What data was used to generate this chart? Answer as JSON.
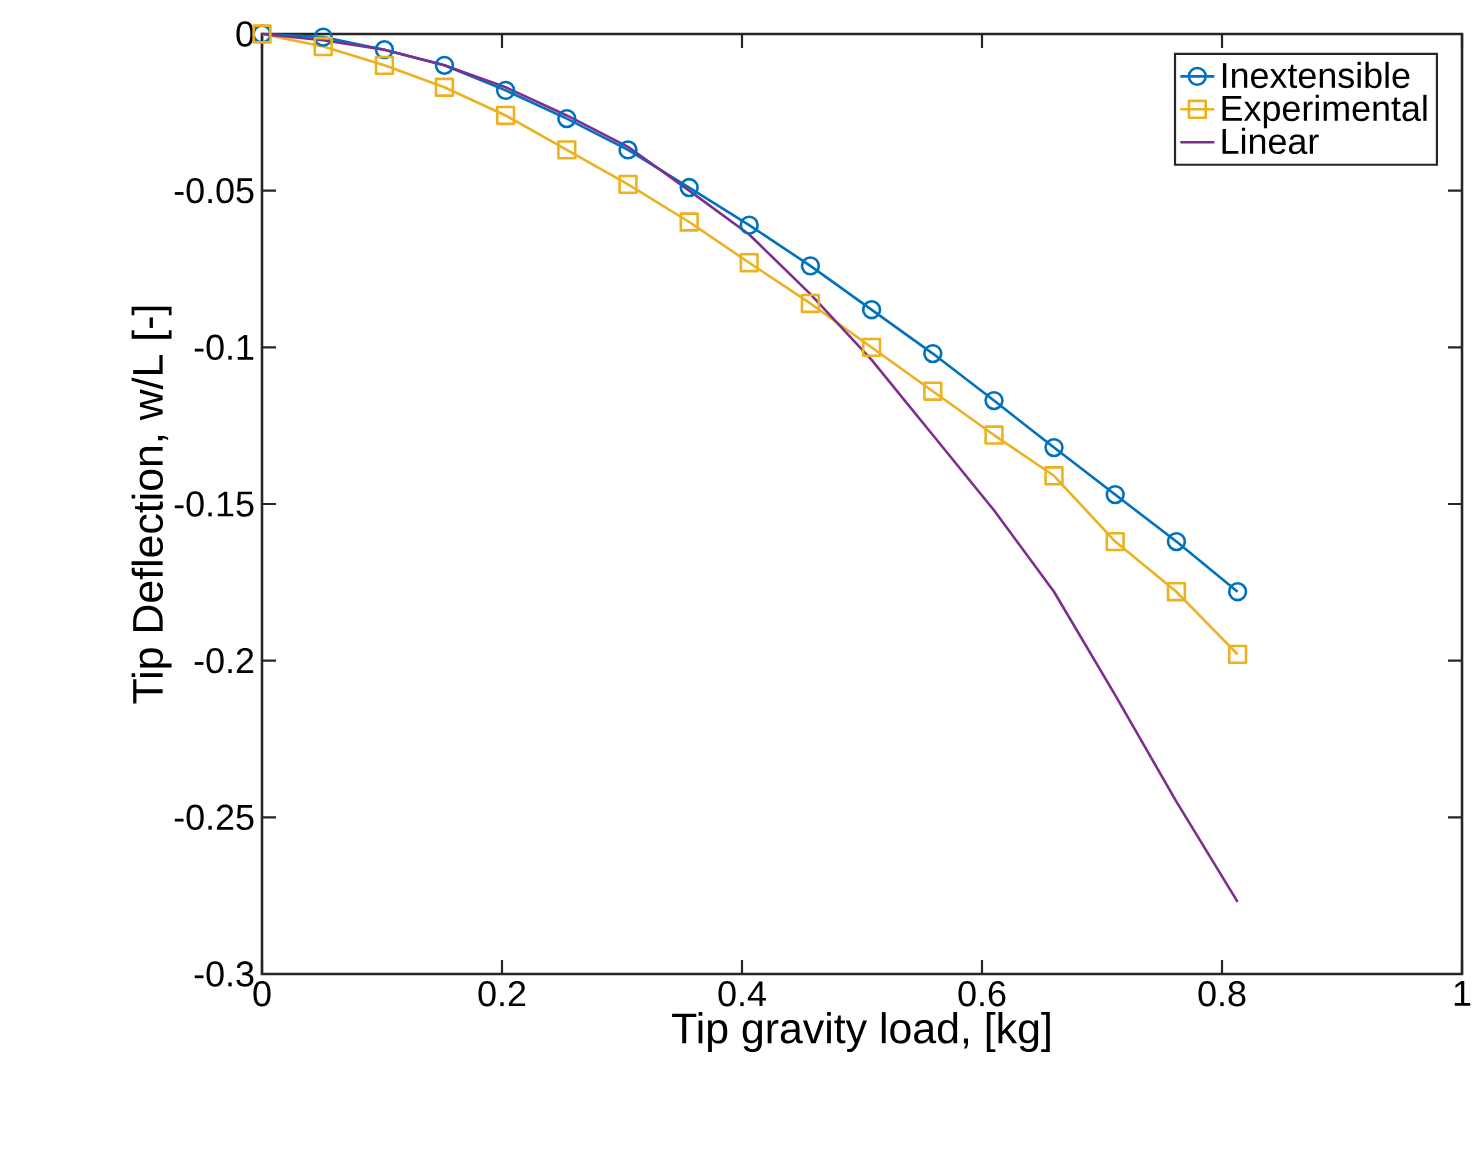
{
  "chart_data": {
    "type": "line",
    "xlabel": "Tip gravity load, [kg]",
    "ylabel": "Tip Deflection, w/L [-]",
    "xlim": [
      0,
      1
    ],
    "ylim": [
      -0.3,
      0
    ],
    "xticks": [
      0,
      0.2,
      0.4,
      0.6,
      0.8,
      1
    ],
    "yticks": [
      -0.3,
      -0.25,
      -0.2,
      -0.15,
      -0.1,
      -0.05,
      0
    ],
    "grid": false,
    "legend": "top right",
    "x": [
      0,
      0.051,
      0.102,
      0.152,
      0.203,
      0.254,
      0.305,
      0.356,
      0.406,
      0.457,
      0.508,
      0.559,
      0.61,
      0.66,
      0.711,
      0.762,
      0.813
    ],
    "series": [
      {
        "name": "Inextensible",
        "color": "#0072bd",
        "marker": "circle",
        "values": [
          0,
          -0.001,
          -0.005,
          -0.01,
          -0.018,
          -0.027,
          -0.037,
          -0.049,
          -0.061,
          -0.074,
          -0.088,
          -0.102,
          -0.117,
          -0.132,
          -0.147,
          -0.162,
          -0.178
        ]
      },
      {
        "name": "Experimental",
        "color": "#edb120",
        "marker": "square",
        "values": [
          0,
          -0.004,
          -0.01,
          -0.017,
          -0.026,
          -0.037,
          -0.048,
          -0.06,
          -0.073,
          -0.086,
          -0.1,
          -0.114,
          -0.128,
          -0.141,
          -0.162,
          -0.178,
          -0.198
        ]
      },
      {
        "name": "Linear",
        "color": "#7e2f8e",
        "marker": "none",
        "values": [
          0,
          -0.002,
          -0.005,
          -0.01,
          -0.017,
          -0.026,
          -0.036,
          -0.05,
          -0.064,
          -0.083,
          -0.104,
          -0.128,
          -0.152,
          -0.178,
          -0.211,
          -0.245,
          -0.277
        ]
      }
    ]
  }
}
